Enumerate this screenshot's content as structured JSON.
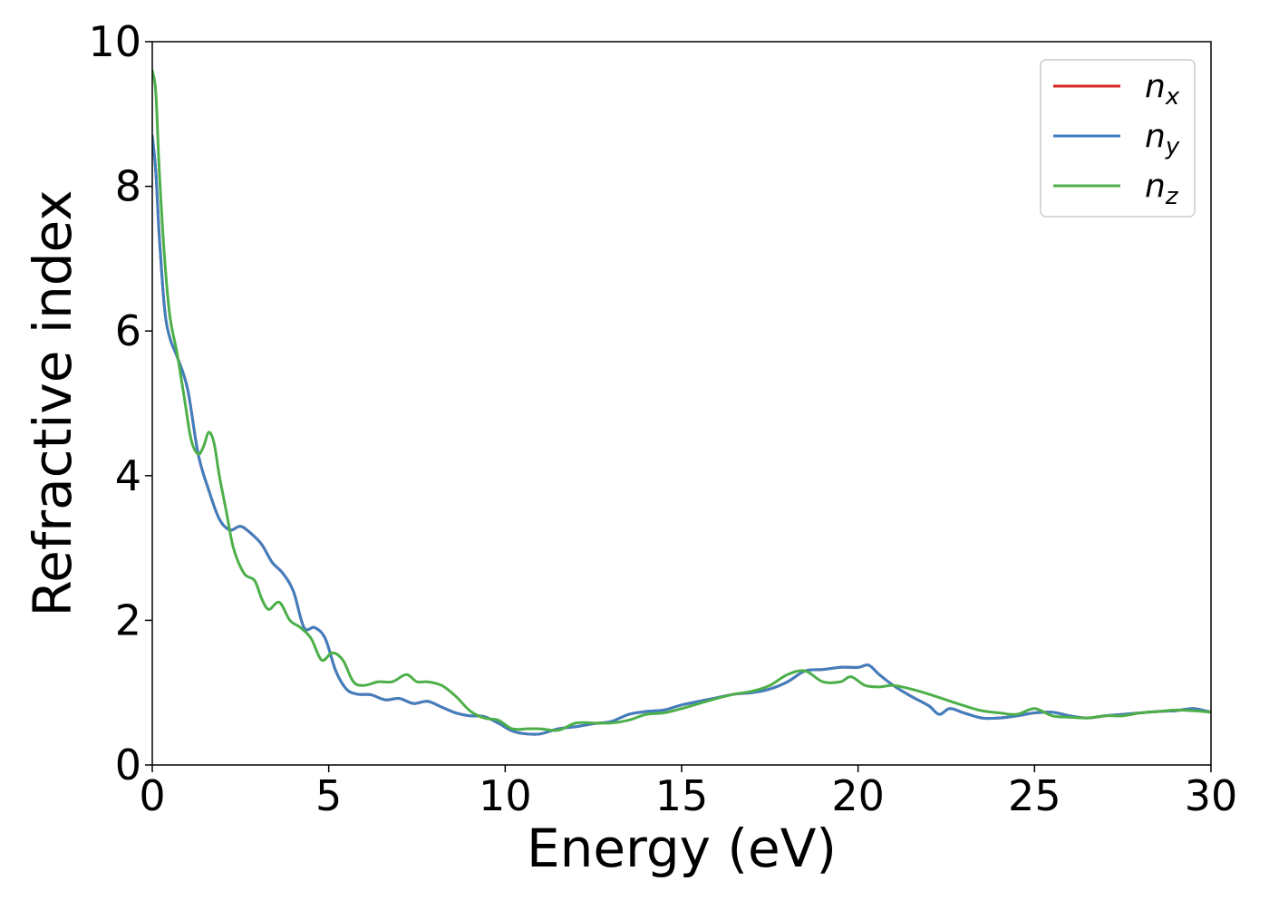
{
  "chart_data": {
    "type": "line",
    "title": "",
    "xlabel": "Energy (eV)",
    "ylabel": "Refractive index",
    "xlim": [
      0,
      30
    ],
    "ylim": [
      0,
      10
    ],
    "xticks": [
      0,
      5,
      10,
      15,
      20,
      25,
      30
    ],
    "yticks": [
      0,
      2,
      4,
      6,
      8,
      10
    ],
    "xtick_labels": [
      "0",
      "5",
      "10",
      "15",
      "20",
      "25",
      "30"
    ],
    "ytick_labels": [
      "0",
      "2",
      "4",
      "6",
      "8",
      "10"
    ],
    "grid": false,
    "legend_position": "top-right",
    "series": [
      {
        "name": "n",
        "subscript": "x",
        "color": "#d62728",
        "x": [
          0,
          0.1,
          0.2,
          0.35,
          0.5,
          0.7,
          1.0,
          1.3,
          1.6,
          1.9,
          2.2,
          2.5,
          2.8,
          3.1,
          3.4,
          3.7,
          4.0,
          4.3,
          4.6,
          4.9,
          5.2,
          5.5,
          5.8,
          6.2,
          6.6,
          7.0,
          7.4,
          7.8,
          8.2,
          8.6,
          9.0,
          9.4,
          9.8,
          10.2,
          10.6,
          11.0,
          11.5,
          12.0,
          12.5,
          13.0,
          13.5,
          14.0,
          14.5,
          15.0,
          15.5,
          16.0,
          16.5,
          17.0,
          17.5,
          18.0,
          18.5,
          19.0,
          19.5,
          20.0,
          20.3,
          20.6,
          21.0,
          21.5,
          22.0,
          22.3,
          22.6,
          23.0,
          23.5,
          24.0,
          24.5,
          25.0,
          25.5,
          26.0,
          26.5,
          27.0,
          27.5,
          28.0,
          28.5,
          29.0,
          29.5,
          30.0
        ],
        "y": [
          8.7,
          8.2,
          7.3,
          6.3,
          5.9,
          5.65,
          5.2,
          4.3,
          3.8,
          3.4,
          3.25,
          3.3,
          3.2,
          3.05,
          2.8,
          2.65,
          2.4,
          1.9,
          1.9,
          1.75,
          1.3,
          1.05,
          0.98,
          0.97,
          0.9,
          0.92,
          0.85,
          0.88,
          0.8,
          0.72,
          0.68,
          0.67,
          0.58,
          0.47,
          0.43,
          0.43,
          0.5,
          0.53,
          0.57,
          0.6,
          0.7,
          0.74,
          0.76,
          0.83,
          0.88,
          0.93,
          0.98,
          1.0,
          1.05,
          1.15,
          1.3,
          1.32,
          1.35,
          1.35,
          1.38,
          1.25,
          1.1,
          0.95,
          0.82,
          0.7,
          0.78,
          0.72,
          0.65,
          0.65,
          0.68,
          0.72,
          0.73,
          0.68,
          0.65,
          0.68,
          0.7,
          0.72,
          0.74,
          0.75,
          0.78,
          0.73
        ]
      },
      {
        "name": "n",
        "subscript": "y",
        "color": "#3f7fbf",
        "x": [
          0,
          0.1,
          0.2,
          0.35,
          0.5,
          0.7,
          1.0,
          1.3,
          1.6,
          1.9,
          2.2,
          2.5,
          2.8,
          3.1,
          3.4,
          3.7,
          4.0,
          4.3,
          4.6,
          4.9,
          5.2,
          5.5,
          5.8,
          6.2,
          6.6,
          7.0,
          7.4,
          7.8,
          8.2,
          8.6,
          9.0,
          9.4,
          9.8,
          10.2,
          10.6,
          11.0,
          11.5,
          12.0,
          12.5,
          13.0,
          13.5,
          14.0,
          14.5,
          15.0,
          15.5,
          16.0,
          16.5,
          17.0,
          17.5,
          18.0,
          18.5,
          19.0,
          19.5,
          20.0,
          20.3,
          20.6,
          21.0,
          21.5,
          22.0,
          22.3,
          22.6,
          23.0,
          23.5,
          24.0,
          24.5,
          25.0,
          25.5,
          26.0,
          26.5,
          27.0,
          27.5,
          28.0,
          28.5,
          29.0,
          29.5,
          30.0
        ],
        "y": [
          8.7,
          8.2,
          7.3,
          6.3,
          5.9,
          5.65,
          5.2,
          4.3,
          3.8,
          3.4,
          3.25,
          3.3,
          3.2,
          3.05,
          2.8,
          2.65,
          2.4,
          1.9,
          1.9,
          1.75,
          1.3,
          1.05,
          0.98,
          0.97,
          0.9,
          0.92,
          0.85,
          0.88,
          0.8,
          0.72,
          0.68,
          0.67,
          0.58,
          0.47,
          0.43,
          0.43,
          0.5,
          0.53,
          0.57,
          0.6,
          0.7,
          0.74,
          0.76,
          0.83,
          0.88,
          0.93,
          0.98,
          1.0,
          1.05,
          1.15,
          1.3,
          1.32,
          1.35,
          1.35,
          1.38,
          1.25,
          1.1,
          0.95,
          0.82,
          0.7,
          0.78,
          0.72,
          0.65,
          0.65,
          0.68,
          0.72,
          0.73,
          0.68,
          0.65,
          0.68,
          0.7,
          0.72,
          0.74,
          0.75,
          0.78,
          0.73
        ]
      },
      {
        "name": "n",
        "subscript": "z",
        "color": "#4daf4a",
        "x": [
          0,
          0.1,
          0.2,
          0.35,
          0.5,
          0.7,
          0.9,
          1.1,
          1.3,
          1.45,
          1.6,
          1.75,
          1.9,
          2.1,
          2.3,
          2.6,
          2.9,
          3.1,
          3.3,
          3.6,
          3.9,
          4.2,
          4.5,
          4.8,
          5.1,
          5.4,
          5.7,
          6.0,
          6.4,
          6.8,
          7.2,
          7.5,
          7.8,
          8.2,
          8.6,
          9.0,
          9.4,
          9.8,
          10.2,
          10.6,
          11.0,
          11.5,
          12.0,
          12.5,
          13.0,
          13.5,
          14.0,
          14.5,
          15.0,
          15.5,
          16.0,
          16.5,
          17.0,
          17.5,
          18.0,
          18.5,
          19.0,
          19.5,
          19.8,
          20.2,
          20.6,
          21.0,
          21.5,
          22.0,
          22.5,
          23.0,
          23.5,
          24.0,
          24.5,
          25.0,
          25.5,
          26.0,
          26.5,
          27.0,
          27.5,
          28.0,
          28.5,
          29.0,
          29.5,
          30.0
        ],
        "y": [
          9.6,
          9.3,
          8.2,
          7.0,
          6.2,
          5.7,
          5.1,
          4.5,
          4.3,
          4.4,
          4.6,
          4.45,
          4.0,
          3.5,
          3.0,
          2.65,
          2.55,
          2.3,
          2.15,
          2.25,
          2.0,
          1.9,
          1.75,
          1.45,
          1.55,
          1.45,
          1.15,
          1.1,
          1.15,
          1.15,
          1.25,
          1.15,
          1.15,
          1.1,
          0.95,
          0.75,
          0.65,
          0.62,
          0.5,
          0.5,
          0.5,
          0.48,
          0.58,
          0.58,
          0.58,
          0.62,
          0.7,
          0.72,
          0.78,
          0.85,
          0.92,
          0.98,
          1.02,
          1.1,
          1.25,
          1.3,
          1.15,
          1.15,
          1.22,
          1.1,
          1.08,
          1.1,
          1.05,
          0.98,
          0.9,
          0.82,
          0.75,
          0.72,
          0.7,
          0.78,
          0.68,
          0.66,
          0.65,
          0.68,
          0.68,
          0.72,
          0.74,
          0.76,
          0.75,
          0.73
        ]
      }
    ]
  }
}
